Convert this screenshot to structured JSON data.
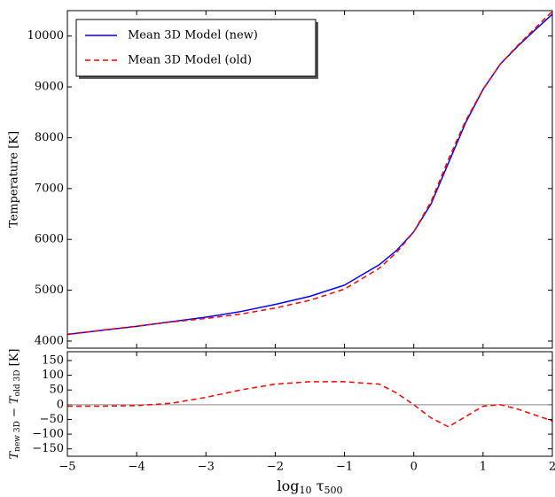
{
  "chart_data": [
    {
      "type": "line",
      "y_label": "Temperature [K]",
      "x": [
        -5,
        -4.5,
        -4,
        -3.5,
        -3,
        -2.5,
        -2,
        -1.5,
        -1,
        -0.5,
        -0.25,
        0,
        0.25,
        0.5,
        0.75,
        1,
        1.25,
        1.5,
        1.75,
        2
      ],
      "series": [
        {
          "name": "Mean 3D Model (new)",
          "color": "#0000ff",
          "dash": false,
          "values": [
            4130,
            4210,
            4290,
            4380,
            4470,
            4580,
            4720,
            4880,
            5100,
            5500,
            5780,
            6150,
            6700,
            7500,
            8300,
            8950,
            9450,
            9800,
            10120,
            10430
          ]
        },
        {
          "name": "Mean 3D Model (old)",
          "color": "#ff0000",
          "dash": true,
          "values": [
            4135,
            4215,
            4293,
            4375,
            4445,
            4530,
            4650,
            4802,
            5022,
            5430,
            5740,
            6150,
            6745,
            7575,
            8340,
            8955,
            9450,
            9815,
            10155,
            10485
          ]
        }
      ],
      "xlim": [
        -5,
        2
      ],
      "xticks": [
        -5,
        -4,
        -3,
        -2,
        -1,
        0,
        1,
        2
      ],
      "ylim": [
        3860,
        10500
      ],
      "yticks": [
        4000,
        5000,
        6000,
        7000,
        8000,
        9000,
        10000
      ],
      "legend": "upper left"
    },
    {
      "type": "line",
      "x_label": [
        "log",
        "10",
        " τ",
        "500"
      ],
      "y_label": [
        "T",
        "new 3D",
        " − T",
        "old 3D",
        " [K]"
      ],
      "x": [
        -5,
        -4.5,
        -4,
        -3.5,
        -3,
        -2.5,
        -2,
        -1.5,
        -1,
        -0.5,
        -0.25,
        0,
        0.25,
        0.5,
        0.75,
        1,
        1.25,
        1.5,
        1.75,
        2
      ],
      "series": [
        {
          "color": "#ff0000",
          "dash": true,
          "values": [
            -5,
            -5,
            -3,
            5,
            25,
            50,
            70,
            78,
            78,
            70,
            40,
            0,
            -45,
            -75,
            -40,
            -5,
            0,
            -15,
            -35,
            -55
          ]
        }
      ],
      "hline": 0,
      "xlim": [
        -5,
        2
      ],
      "xticks": [
        {
          "value": -5,
          "label": "−5"
        },
        {
          "value": -4,
          "label": "−4"
        },
        {
          "value": -3,
          "label": "−3"
        },
        {
          "value": -2,
          "label": "−2"
        },
        {
          "value": -1,
          "label": "−1"
        },
        0,
        1,
        2
      ],
      "ylim": [
        -175,
        180
      ],
      "yticks": [
        {
          "value": -150,
          "label": "−150"
        },
        {
          "value": -100,
          "label": "−100"
        },
        {
          "value": -50,
          "label": "−50"
        },
        0,
        50,
        100,
        150
      ]
    }
  ]
}
